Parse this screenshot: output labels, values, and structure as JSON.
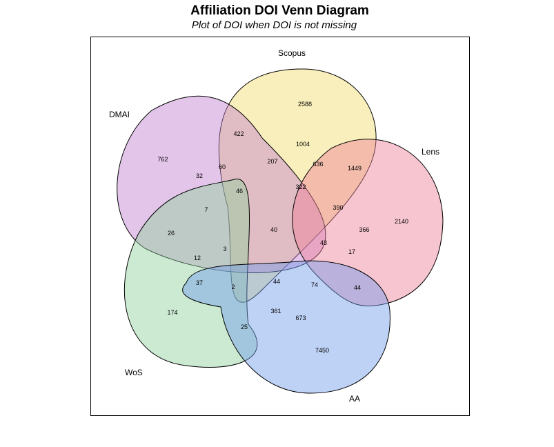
{
  "title": "Affiliation DOI Venn Diagram",
  "subtitle": "Plot of DOI when DOI is not missing",
  "sets": [
    {
      "name": "Scopus",
      "color": "#F2DC6B"
    },
    {
      "name": "DMAI",
      "color": "#C07FD0"
    },
    {
      "name": "Lens",
      "color": "#EE7F97"
    },
    {
      "name": "WoS",
      "color": "#8FD19B"
    },
    {
      "name": "AA",
      "color": "#6E9BEA"
    }
  ],
  "regions": [
    {
      "value": "2588"
    },
    {
      "value": "422"
    },
    {
      "value": "1004"
    },
    {
      "value": "762"
    },
    {
      "value": "60"
    },
    {
      "value": "207"
    },
    {
      "value": "636"
    },
    {
      "value": "1449"
    },
    {
      "value": "32"
    },
    {
      "value": "46"
    },
    {
      "value": "322"
    },
    {
      "value": "2140"
    },
    {
      "value": "7"
    },
    {
      "value": "390"
    },
    {
      "value": "366"
    },
    {
      "value": "26"
    },
    {
      "value": "40"
    },
    {
      "value": "43"
    },
    {
      "value": "3"
    },
    {
      "value": "17"
    },
    {
      "value": "12"
    },
    {
      "value": "37"
    },
    {
      "value": "2"
    },
    {
      "value": "44"
    },
    {
      "value": "74"
    },
    {
      "value": "44"
    },
    {
      "value": "174"
    },
    {
      "value": "361"
    },
    {
      "value": "673"
    },
    {
      "value": "25"
    },
    {
      "value": "7450"
    }
  ]
}
